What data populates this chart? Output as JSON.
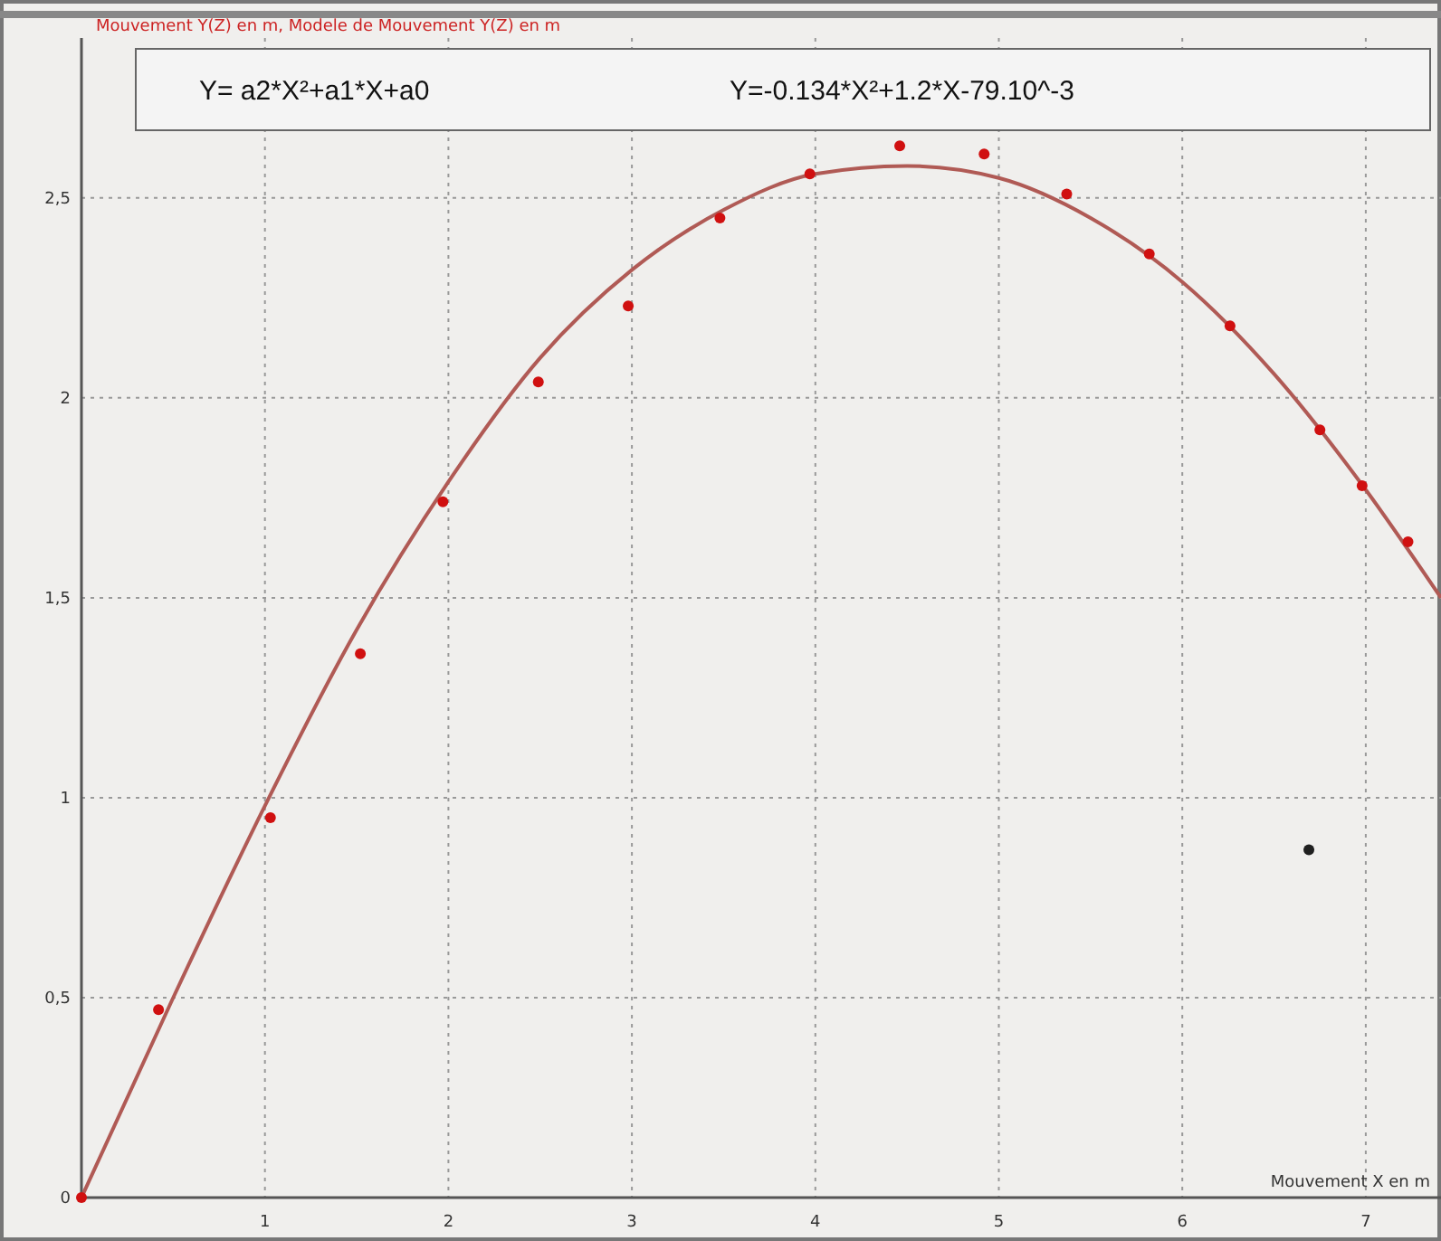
{
  "chart_data": {
    "type": "scatter",
    "ylabel": "Mouvement Y(Z) en m, Modele de Mouvement Y(Z) en m",
    "xlabel": "Mouvement X en m",
    "annotations": [
      "Y= a2*X²+a1*X+a0",
      "Y=-0.134*X²+1.2*X-79.10^-3"
    ],
    "xlim": [
      0,
      7.41
    ],
    "ylim": [
      0,
      2.9
    ],
    "xticks": [
      1,
      2,
      3,
      4,
      5,
      6,
      7
    ],
    "yticks": [
      0,
      {
        "value": 0.5,
        "label": "0,5"
      },
      1,
      {
        "value": 1.5,
        "label": "1,5"
      },
      2,
      {
        "value": 2.5,
        "label": "2,5"
      }
    ],
    "grid": true,
    "line_style": "solid",
    "series": [
      {
        "type": "line",
        "color": "#b05a55",
        "x": [
          0,
          0.5,
          1,
          1.5,
          2,
          2.5,
          3,
          3.5,
          4,
          4.5,
          5,
          5.5,
          6,
          6.5,
          7,
          7.41
        ],
        "values": [
          0,
          0.5,
          0.98,
          1.42,
          1.79,
          2.1,
          2.32,
          2.47,
          2.56,
          2.58,
          2.55,
          2.45,
          2.29,
          2.06,
          1.77,
          1.5
        ]
      },
      {
        "marker": "circle",
        "color": "#d01010",
        "x": [
          0,
          0.42,
          1.03,
          1.52,
          1.97,
          2.49,
          2.98,
          3.48,
          3.97,
          4.46,
          4.92,
          5.37,
          5.82,
          6.26,
          6.75,
          6.98,
          7.23
        ],
        "values": [
          0,
          0.47,
          0.95,
          1.36,
          1.74,
          2.04,
          2.23,
          2.45,
          2.56,
          2.63,
          2.61,
          2.51,
          2.36,
          2.18,
          1.92,
          1.78,
          1.64
        ]
      },
      {
        "marker": "circle",
        "color": "#202020",
        "x": [
          6.69
        ],
        "values": [
          0.87
        ]
      }
    ]
  }
}
